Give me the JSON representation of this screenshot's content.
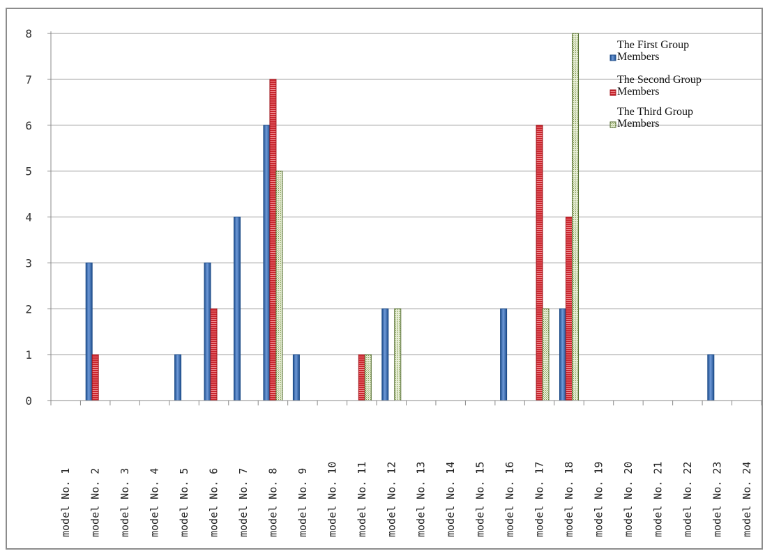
{
  "chart_data": {
    "type": "bar",
    "title": "",
    "xlabel": "",
    "ylabel": "",
    "ylim": [
      0,
      8
    ],
    "yticks": [
      "0",
      "1",
      "2",
      "3",
      "4",
      "5",
      "6",
      "7",
      "8"
    ],
    "grid": true,
    "legend_position": "top-right",
    "categories": [
      "model No. 1",
      "model No. 2",
      "model No. 3",
      "model No. 4",
      "model No. 5",
      "model No. 6",
      "model No. 7",
      "model No. 8",
      "model No. 9",
      "model No. 10",
      "model No. 11",
      "model No. 12",
      "model No. 13",
      "model No. 14",
      "model No. 15",
      "model No. 16",
      "model No. 17",
      "model No. 18",
      "model No. 19",
      "model No. 20",
      "model No. 21",
      "model No. 22",
      "model No. 23",
      "model No. 24"
    ],
    "series": [
      {
        "name": "The First Group Members",
        "color": "#3a6fb5",
        "values": [
          0,
          3,
          0,
          0,
          1,
          3,
          4,
          6,
          1,
          0,
          0,
          2,
          0,
          0,
          0,
          2,
          0,
          2,
          0,
          0,
          0,
          0,
          1,
          0
        ]
      },
      {
        "name": "The Second Group Members",
        "color": "#d9323a",
        "values": [
          0,
          1,
          0,
          0,
          0,
          2,
          0,
          7,
          0,
          0,
          1,
          0,
          0,
          0,
          0,
          0,
          6,
          4,
          0,
          0,
          0,
          0,
          0,
          0
        ]
      },
      {
        "name": "The Third Group Members",
        "color": "#8aa15a",
        "values": [
          0,
          0,
          0,
          0,
          0,
          0,
          0,
          5,
          0,
          0,
          1,
          2,
          0,
          0,
          0,
          0,
          2,
          8,
          0,
          0,
          0,
          0,
          0,
          0
        ]
      }
    ]
  }
}
